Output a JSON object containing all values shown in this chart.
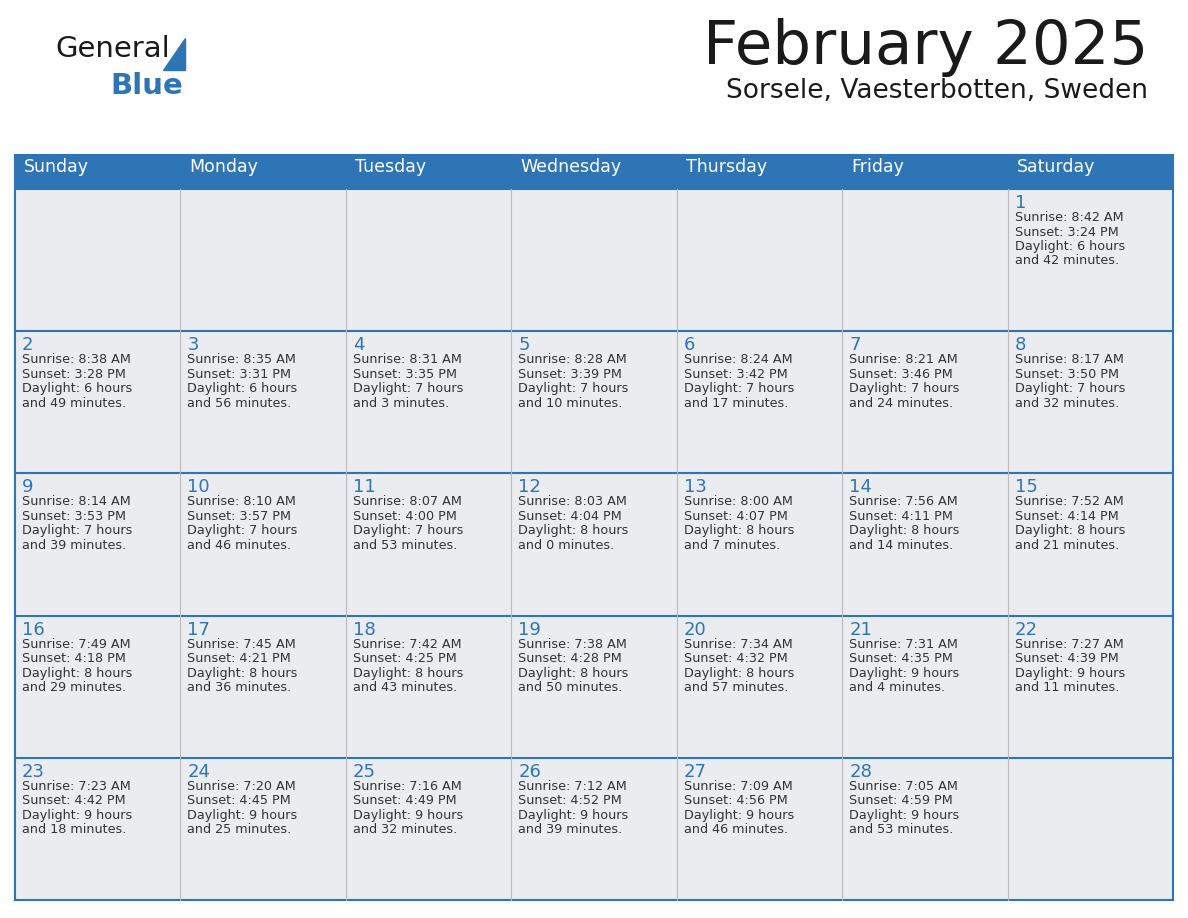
{
  "title": "February 2025",
  "subtitle": "Sorsele, Vaesterbotten, Sweden",
  "days_of_week": [
    "Sunday",
    "Monday",
    "Tuesday",
    "Wednesday",
    "Thursday",
    "Friday",
    "Saturday"
  ],
  "header_bg": "#2E75B6",
  "header_text": "#FFFFFF",
  "cell_bg": "#EAECF0",
  "border_color": "#2E75B6",
  "title_color": "#1a1a1a",
  "subtitle_color": "#1a1a1a",
  "day_number_color": "#2E75B6",
  "cell_text_color": "#333333",
  "calendar_data": [
    [
      null,
      null,
      null,
      null,
      null,
      null,
      {
        "day": 1,
        "sunrise": "8:42 AM",
        "sunset": "3:24 PM",
        "daylight": "6 hours and 42 minutes."
      }
    ],
    [
      {
        "day": 2,
        "sunrise": "8:38 AM",
        "sunset": "3:28 PM",
        "daylight": "6 hours and 49 minutes."
      },
      {
        "day": 3,
        "sunrise": "8:35 AM",
        "sunset": "3:31 PM",
        "daylight": "6 hours and 56 minutes."
      },
      {
        "day": 4,
        "sunrise": "8:31 AM",
        "sunset": "3:35 PM",
        "daylight": "7 hours and 3 minutes."
      },
      {
        "day": 5,
        "sunrise": "8:28 AM",
        "sunset": "3:39 PM",
        "daylight": "7 hours and 10 minutes."
      },
      {
        "day": 6,
        "sunrise": "8:24 AM",
        "sunset": "3:42 PM",
        "daylight": "7 hours and 17 minutes."
      },
      {
        "day": 7,
        "sunrise": "8:21 AM",
        "sunset": "3:46 PM",
        "daylight": "7 hours and 24 minutes."
      },
      {
        "day": 8,
        "sunrise": "8:17 AM",
        "sunset": "3:50 PM",
        "daylight": "7 hours and 32 minutes."
      }
    ],
    [
      {
        "day": 9,
        "sunrise": "8:14 AM",
        "sunset": "3:53 PM",
        "daylight": "7 hours and 39 minutes."
      },
      {
        "day": 10,
        "sunrise": "8:10 AM",
        "sunset": "3:57 PM",
        "daylight": "7 hours and 46 minutes."
      },
      {
        "day": 11,
        "sunrise": "8:07 AM",
        "sunset": "4:00 PM",
        "daylight": "7 hours and 53 minutes."
      },
      {
        "day": 12,
        "sunrise": "8:03 AM",
        "sunset": "4:04 PM",
        "daylight": "8 hours and 0 minutes."
      },
      {
        "day": 13,
        "sunrise": "8:00 AM",
        "sunset": "4:07 PM",
        "daylight": "8 hours and 7 minutes."
      },
      {
        "day": 14,
        "sunrise": "7:56 AM",
        "sunset": "4:11 PM",
        "daylight": "8 hours and 14 minutes."
      },
      {
        "day": 15,
        "sunrise": "7:52 AM",
        "sunset": "4:14 PM",
        "daylight": "8 hours and 21 minutes."
      }
    ],
    [
      {
        "day": 16,
        "sunrise": "7:49 AM",
        "sunset": "4:18 PM",
        "daylight": "8 hours and 29 minutes."
      },
      {
        "day": 17,
        "sunrise": "7:45 AM",
        "sunset": "4:21 PM",
        "daylight": "8 hours and 36 minutes."
      },
      {
        "day": 18,
        "sunrise": "7:42 AM",
        "sunset": "4:25 PM",
        "daylight": "8 hours and 43 minutes."
      },
      {
        "day": 19,
        "sunrise": "7:38 AM",
        "sunset": "4:28 PM",
        "daylight": "8 hours and 50 minutes."
      },
      {
        "day": 20,
        "sunrise": "7:34 AM",
        "sunset": "4:32 PM",
        "daylight": "8 hours and 57 minutes."
      },
      {
        "day": 21,
        "sunrise": "7:31 AM",
        "sunset": "4:35 PM",
        "daylight": "9 hours and 4 minutes."
      },
      {
        "day": 22,
        "sunrise": "7:27 AM",
        "sunset": "4:39 PM",
        "daylight": "9 hours and 11 minutes."
      }
    ],
    [
      {
        "day": 23,
        "sunrise": "7:23 AM",
        "sunset": "4:42 PM",
        "daylight": "9 hours and 18 minutes."
      },
      {
        "day": 24,
        "sunrise": "7:20 AM",
        "sunset": "4:45 PM",
        "daylight": "9 hours and 25 minutes."
      },
      {
        "day": 25,
        "sunrise": "7:16 AM",
        "sunset": "4:49 PM",
        "daylight": "9 hours and 32 minutes."
      },
      {
        "day": 26,
        "sunrise": "7:12 AM",
        "sunset": "4:52 PM",
        "daylight": "9 hours and 39 minutes."
      },
      {
        "day": 27,
        "sunrise": "7:09 AM",
        "sunset": "4:56 PM",
        "daylight": "9 hours and 46 minutes."
      },
      {
        "day": 28,
        "sunrise": "7:05 AM",
        "sunset": "4:59 PM",
        "daylight": "9 hours and 53 minutes."
      },
      null
    ]
  ],
  "logo_color_general": "#1a1a1a",
  "logo_color_blue": "#2E75B6"
}
